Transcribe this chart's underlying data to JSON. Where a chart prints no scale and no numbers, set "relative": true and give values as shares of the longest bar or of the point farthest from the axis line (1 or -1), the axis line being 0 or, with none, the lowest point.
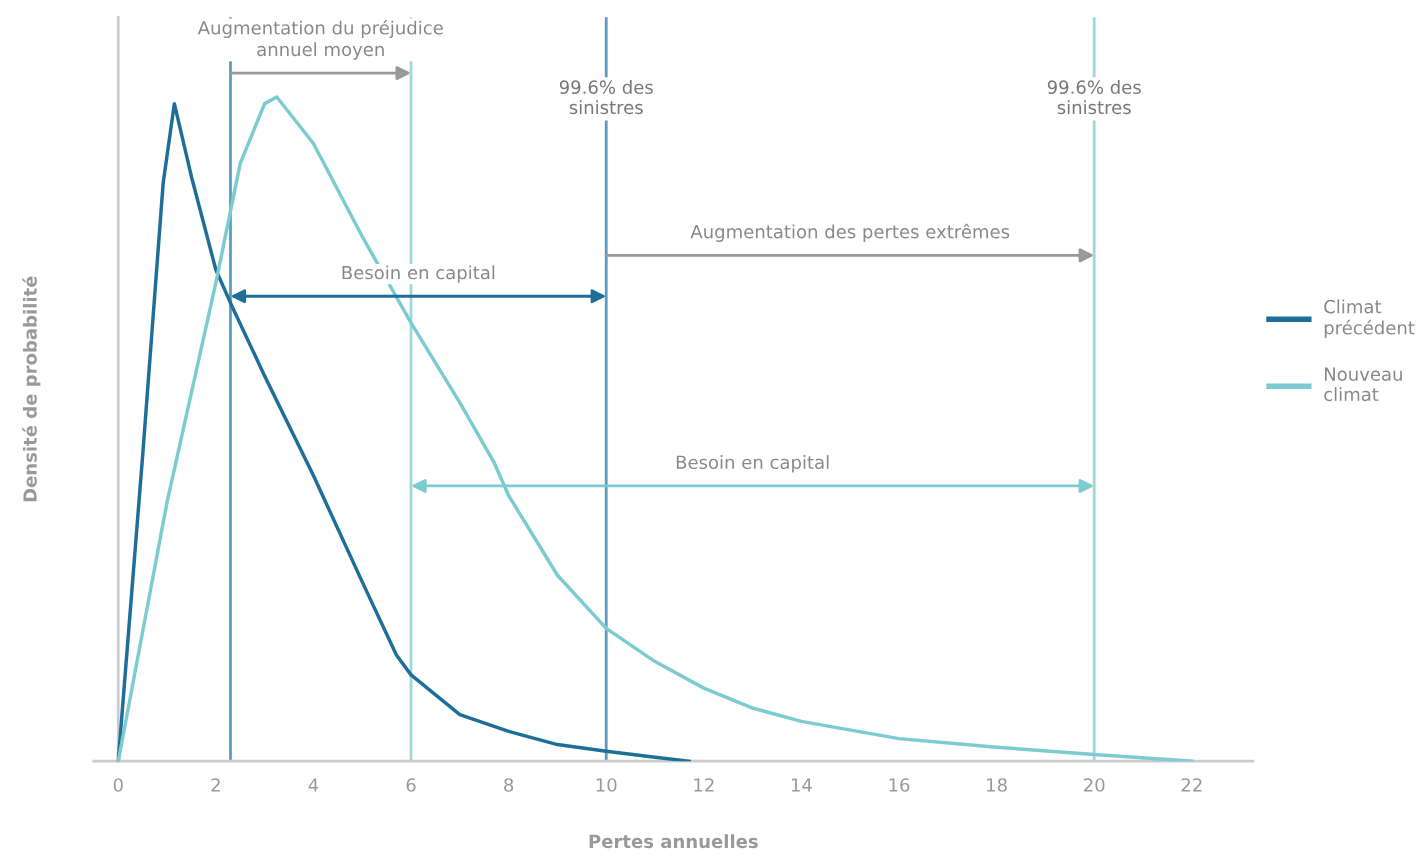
{
  "chart_data": {
    "type": "line",
    "relative": true,
    "xlabel": "Pertes annuelles",
    "ylabel": "Densité de probabilité",
    "xlim": [
      -0.5,
      23.25
    ],
    "xticks": [
      0,
      2,
      4,
      6,
      8,
      10,
      12,
      14,
      16,
      18,
      20,
      22
    ],
    "tick_labels": "x",
    "grid": false,
    "legend": "right",
    "marker": "none",
    "line_style": "solid",
    "series": [
      {
        "name": "Climat\nprécédent",
        "color": "#1f6e99",
        "x": [
          0,
          0.5,
          0.92,
          1.15,
          1.5,
          2,
          2.3,
          3,
          4,
          5,
          5.7,
          6,
          7,
          8,
          9,
          10,
          11,
          11.7
        ],
        "values": [
          0,
          0.46,
          0.87,
          0.99,
          0.88,
          0.74,
          0.69,
          0.58,
          0.43,
          0.27,
          0.16,
          0.13,
          0.07,
          0.045,
          0.025,
          0.015,
          0.006,
          0
        ]
      },
      {
        "name": "Nouveau\nclimat",
        "color": "#7ccbd0",
        "x": [
          0,
          1,
          2,
          2.5,
          3,
          3.25,
          4,
          5,
          6,
          7,
          7.7,
          8,
          9,
          10,
          11,
          12,
          13,
          14,
          16,
          18,
          20,
          22
        ],
        "values": [
          0,
          0.39,
          0.72,
          0.9,
          0.99,
          1.0,
          0.93,
          0.79,
          0.66,
          0.54,
          0.45,
          0.4,
          0.28,
          0.2,
          0.15,
          0.11,
          0.08,
          0.06,
          0.034,
          0.021,
          0.01,
          0
        ]
      }
    ],
    "ref_lines": [
      {
        "axis": "x",
        "value": 2.3,
        "color": "#5b9bbf"
      },
      {
        "axis": "x",
        "value": 6,
        "color": "#9fd8dc"
      },
      {
        "axis": "x",
        "value": 10,
        "color": "#5b9bbf",
        "label": "99.6% des\nsinistres"
      },
      {
        "axis": "x",
        "value": 20,
        "color": "#9fd8dc",
        "label": "99.6% des\nsinistres"
      }
    ],
    "annotations": [
      "Augmentation du préjudice\nannuel moyen",
      "Augmentation des pertes extrêmes",
      "Besoin en capital",
      "Besoin en capital"
    ]
  }
}
